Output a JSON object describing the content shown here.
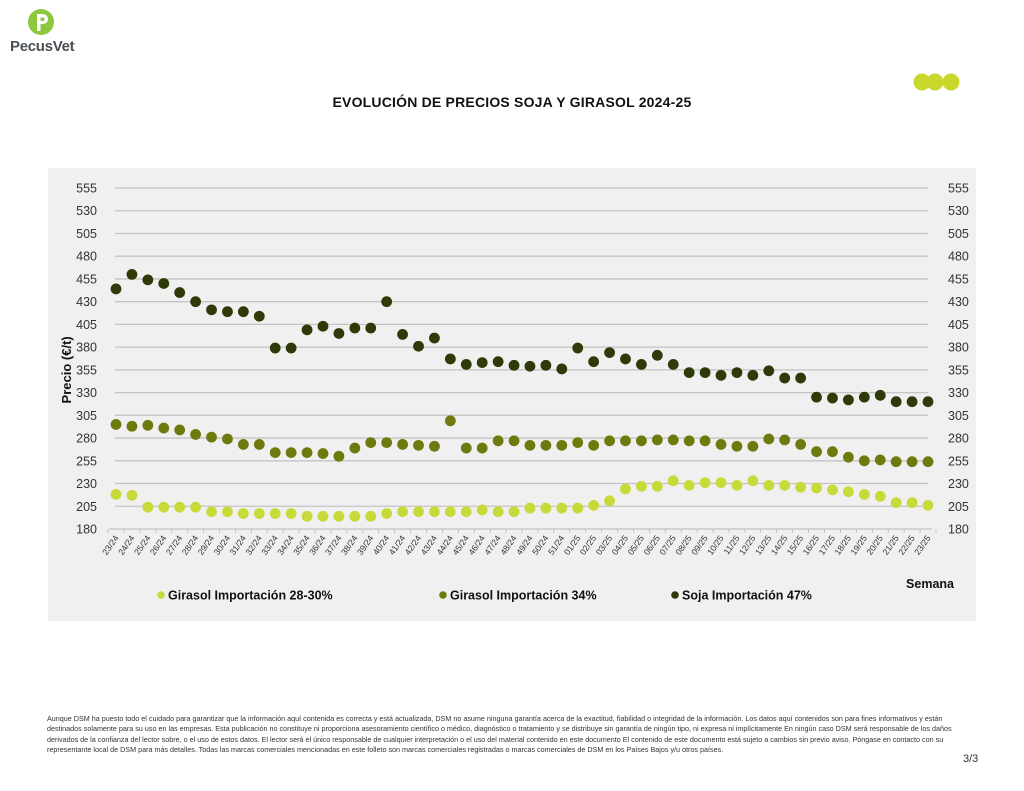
{
  "brand": {
    "name": "PecusVet",
    "accent": "#8dc63f"
  },
  "header": {
    "dots_color": "#c9d92c"
  },
  "page": {
    "title": "EVOLUCIÓN DE PRECIOS SOJA Y GIRASOL 2024-25",
    "page_number": "3/3"
  },
  "footer": {
    "disclaimer": "Aunque DSM ha puesto todo el cuidado para garantizar que la información aquí contenida es correcta y está actualizada, DSM no asume ninguna garantía acerca de la exactitud, fiabilidad o integridad de la información. Los datos aquí contenidos son para fines informativos y están destinados solamente para su uso en las empresas. Esta publicación no constituye ni proporciona asesoramiento científico o médico, diagnóstico o tratamiento y se distribuye sin garantía de ningún tipo, ni expresa ni implícitamente En ningún caso DSM será responsable de los daños derivados de la confianza del lector sobre, o el uso de estos datos. El lector será el único responsable de cualquier interpretación o el uso del material contenido en este documento El contenido de este documento está sujeto a cambios sin previo aviso. Póngase en contacto con su representante local de DSM para más detalles. Todas las marcas comerciales mencionadas en este folleto son marcas comerciales registradas o marcas comerciales de DSM en los Países Bajos y/u otros países."
  },
  "chart_data": {
    "type": "scatter",
    "title": "EVOLUCIÓN DE PRECIOS SOJA Y GIRASOL 2024-25",
    "xlabel": "Semana",
    "ylabel": "Precio (€/t)",
    "ylim": [
      180,
      555
    ],
    "yticks": [
      180,
      205,
      230,
      255,
      280,
      305,
      330,
      355,
      380,
      405,
      430,
      455,
      480,
      505,
      530,
      555
    ],
    "grid": true,
    "secondary_y_axis": true,
    "legend_position": "bottom",
    "categories": [
      "23/24",
      "24/24",
      "25/24",
      "26/24",
      "27/24",
      "28/24",
      "29/24",
      "30/24",
      "31/24",
      "32/24",
      "33/24",
      "34/24",
      "35/24",
      "36/24",
      "37/24",
      "38/24",
      "39/24",
      "40/24",
      "41/24",
      "42/24",
      "43/24",
      "44/24",
      "45/24",
      "46/24",
      "47/24",
      "48/24",
      "49/24",
      "50/24",
      "51/24",
      "01/25",
      "02/25",
      "03/25",
      "04/25",
      "05/25",
      "06/25",
      "07/25",
      "08/25",
      "09/25",
      "10/25",
      "11/25",
      "12/25",
      "13/25",
      "14/25",
      "15/25",
      "16/25",
      "17/25",
      "18/25",
      "19/25",
      "20/25",
      "21/25",
      "22/25",
      "23/25"
    ],
    "series": [
      {
        "name": "Girasol Importación 28-30%",
        "color": "#c8d93a",
        "values": [
          218,
          217,
          204,
          204,
          204,
          204,
          199,
          199,
          197,
          197,
          197,
          197,
          194,
          194,
          194,
          194,
          194,
          197,
          199,
          199,
          199,
          199,
          199,
          201,
          199,
          199,
          203,
          203,
          203,
          203,
          206,
          211,
          224,
          227,
          227,
          233,
          228,
          231,
          231,
          228,
          233,
          228,
          228,
          226,
          225,
          223,
          221,
          218,
          216,
          209,
          209,
          206
        ]
      },
      {
        "name": "Girasol Importación 34%",
        "color": "#6f7a0e",
        "values": [
          295,
          293,
          294,
          291,
          289,
          284,
          281,
          279,
          273,
          273,
          264,
          264,
          264,
          263,
          260,
          269,
          275,
          275,
          273,
          272,
          271,
          299,
          269,
          269,
          277,
          277,
          272,
          272,
          272,
          275,
          272,
          277,
          277,
          277,
          278,
          278,
          277,
          277,
          273,
          271,
          271,
          279,
          278,
          273,
          265,
          265,
          259,
          255,
          256,
          254,
          254,
          254
        ]
      },
      {
        "name": "Soja Importación 47%",
        "color": "#2e3a08",
        "values": [
          444,
          460,
          454,
          450,
          440,
          430,
          421,
          419,
          419,
          414,
          379,
          379,
          399,
          403,
          395,
          401,
          401,
          430,
          394,
          381,
          390,
          367,
          361,
          363,
          364,
          360,
          359,
          360,
          356,
          379,
          364,
          374,
          367,
          361,
          371,
          361,
          352,
          352,
          349,
          352,
          349,
          354,
          346,
          346,
          325,
          324,
          322,
          325,
          327,
          320,
          320,
          320
        ]
      }
    ]
  }
}
